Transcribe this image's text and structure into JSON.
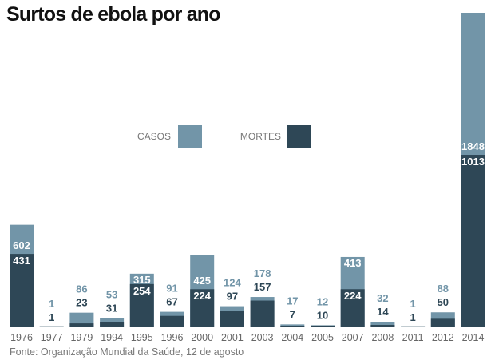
{
  "chart_data": {
    "type": "bar",
    "title": "Surtos de ebola por ano",
    "source": "Fonte: Organização Mundial da Saúde, 12 de agosto",
    "categories": [
      "1976",
      "1977",
      "1979",
      "1994",
      "1995",
      "1996",
      "2000",
      "2001",
      "2003",
      "2004",
      "2005",
      "2007",
      "2008",
      "2011",
      "2012",
      "2014"
    ],
    "series": [
      {
        "name": "CASOS",
        "values": [
          602,
          1,
          86,
          53,
          315,
          91,
          425,
          124,
          178,
          17,
          12,
          413,
          32,
          1,
          88,
          1848
        ],
        "color": "#7295a8"
      },
      {
        "name": "MORTES",
        "values": [
          431,
          1,
          23,
          31,
          254,
          67,
          224,
          97,
          157,
          7,
          10,
          224,
          14,
          1,
          50,
          1013
        ],
        "color": "#2e4756"
      }
    ],
    "ylim": [
      0,
      1848
    ],
    "grid": false,
    "legend": "center"
  }
}
